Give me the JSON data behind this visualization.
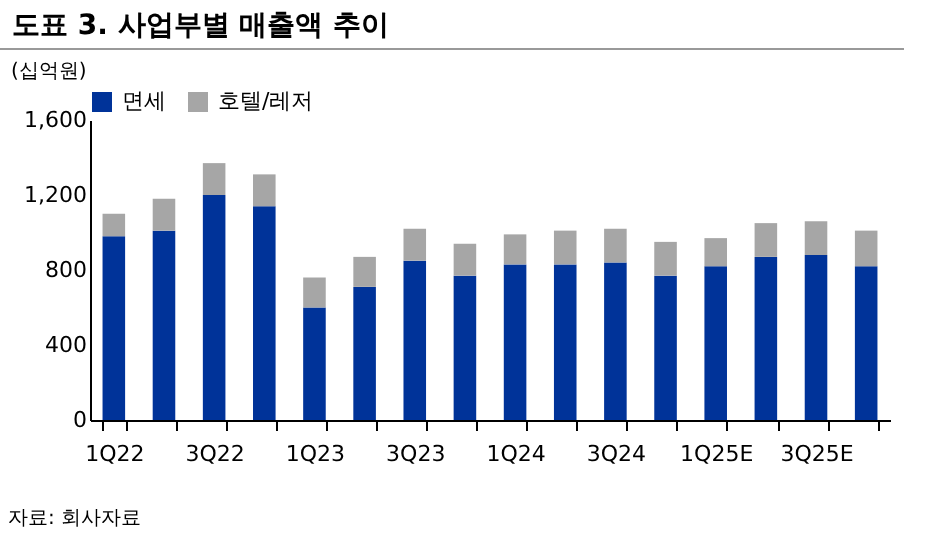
{
  "chart_data": {
    "type": "bar",
    "title": "도표 3.  사업부별 매출액 추이",
    "ylabel": "(십억원)",
    "stacked": true,
    "categories": [
      "1Q22",
      null,
      "3Q22",
      null,
      "1Q23",
      null,
      "3Q23",
      null,
      "1Q24",
      null,
      "3Q24",
      null,
      "1Q25E",
      null,
      "3Q25E",
      null
    ],
    "series": [
      {
        "name": "면세",
        "color": "#003399",
        "values": [
          980,
          1010,
          1200,
          1140,
          600,
          710,
          850,
          770,
          830,
          830,
          840,
          770,
          820,
          870,
          880,
          820
        ]
      },
      {
        "name": "호텔/레저",
        "color": "#a6a6a6",
        "values": [
          120,
          170,
          170,
          170,
          160,
          160,
          170,
          170,
          160,
          180,
          180,
          180,
          150,
          180,
          180,
          190
        ]
      }
    ],
    "ylim": [
      0,
      1600
    ],
    "yticks": [
      0,
      400,
      800,
      {
        "value": 1200,
        "label": "1,200"
      },
      {
        "value": 1600,
        "label": "1,600"
      }
    ],
    "grid": false,
    "legend": "top",
    "annotations": [
      "자료: 회사자료"
    ]
  }
}
